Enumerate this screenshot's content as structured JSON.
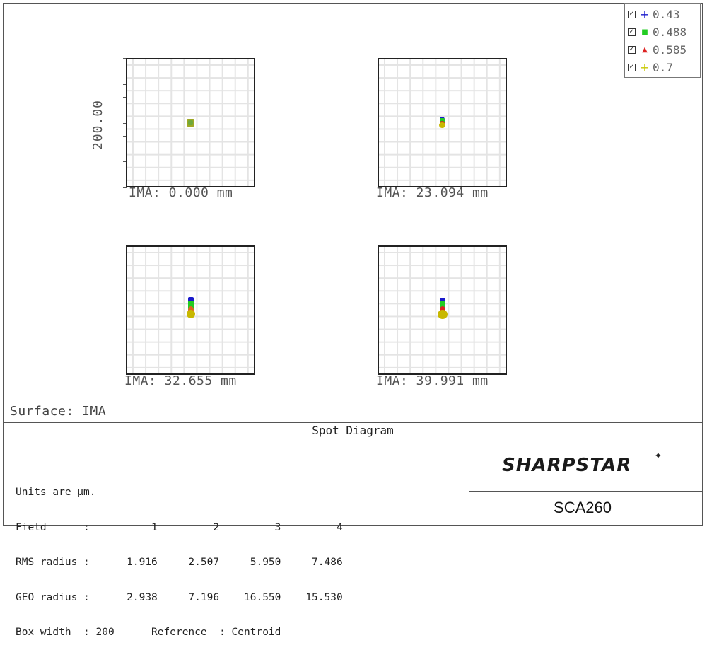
{
  "legend": {
    "items": [
      {
        "label": "0.43",
        "color": "#1a1acc",
        "marker": "+",
        "checked": true
      },
      {
        "label": "0.488",
        "color": "#22cc22",
        "marker": "■",
        "checked": true
      },
      {
        "label": "0.585",
        "color": "#dd2222",
        "marker": "▲",
        "checked": true
      },
      {
        "label": "0.7",
        "color": "#c8c800",
        "marker": "+",
        "checked": true
      }
    ]
  },
  "scale_label": "200.00",
  "fields": [
    {
      "caption": "IMA: 0.000 mm"
    },
    {
      "caption": "IMA: 23.094 mm"
    },
    {
      "caption": "IMA: 32.655 mm"
    },
    {
      "caption": "IMA: 39.991 mm"
    }
  ],
  "surface_label": "Surface: IMA",
  "title": "Spot Diagram",
  "info": {
    "units": "Units are µm.",
    "field_row": "Field      :          1         2         3         4",
    "rms_row": "RMS radius :      1.916     2.507     5.950     7.486",
    "geo_row": "GEO radius :      2.938     7.196    16.550    15.530",
    "box_row": "Box width  : 200      Reference  : Centroid"
  },
  "brand": {
    "logo_text": "SHARPSTAR",
    "star": "✦",
    "product": "SCA260"
  }
}
